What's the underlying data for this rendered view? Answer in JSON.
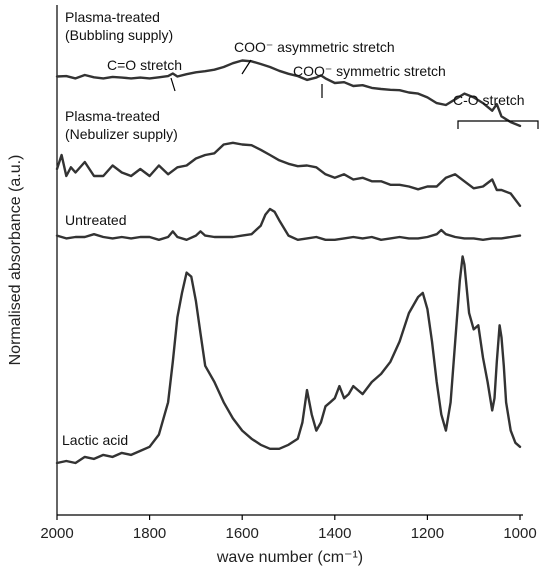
{
  "chart_data": {
    "type": "line",
    "xlabel": "wave number (cm⁻¹)",
    "ylabel": "Normalised absorbance (a.u.)",
    "xlim": [
      2000,
      1000
    ],
    "x_reversed": true,
    "x_ticks": [
      "2000",
      "1800",
      "1600",
      "1400",
      "1200",
      "1000"
    ],
    "y_ticks": false,
    "grid": false,
    "series": [
      {
        "name": "Plasma-treated (Bubbling supply)",
        "label_lines": [
          "Plasma-treated",
          "(Bubbling supply)"
        ],
        "x": [
          2000,
          1980,
          1960,
          1940,
          1920,
          1900,
          1880,
          1860,
          1840,
          1820,
          1800,
          1780,
          1760,
          1750,
          1740,
          1720,
          1700,
          1680,
          1660,
          1640,
          1620,
          1600,
          1580,
          1560,
          1540,
          1520,
          1500,
          1480,
          1460,
          1440,
          1430,
          1420,
          1400,
          1380,
          1360,
          1340,
          1320,
          1300,
          1280,
          1260,
          1240,
          1220,
          1200,
          1180,
          1160,
          1140,
          1120,
          1100,
          1080,
          1060,
          1050,
          1040,
          1020,
          1000
        ],
        "y": [
          0.75,
          0.76,
          0.7,
          0.79,
          0.73,
          0.7,
          0.74,
          0.72,
          0.7,
          0.72,
          0.7,
          0.73,
          0.76,
          0.83,
          0.75,
          0.81,
          0.86,
          0.89,
          0.93,
          1.0,
          1.1,
          1.17,
          1.15,
          1.08,
          1.0,
          0.9,
          0.82,
          0.76,
          0.66,
          0.72,
          0.78,
          0.7,
          0.58,
          0.6,
          0.5,
          0.52,
          0.45,
          0.42,
          0.4,
          0.39,
          0.33,
          0.3,
          0.2,
          0.05,
          0.0,
          0.15,
          0.3,
          0.2,
          0.05,
          -0.15,
          0.02,
          -0.3,
          -0.45,
          -0.55
        ]
      },
      {
        "name": "Plasma-treated (Nebulizer supply)",
        "label_lines": [
          "Plasma-treated",
          "(Nebulizer supply)"
        ],
        "x": [
          2000,
          1990,
          1980,
          1970,
          1960,
          1940,
          1920,
          1900,
          1880,
          1860,
          1840,
          1820,
          1800,
          1780,
          1760,
          1740,
          1720,
          1700,
          1680,
          1660,
          1640,
          1620,
          1600,
          1580,
          1560,
          1540,
          1520,
          1500,
          1480,
          1460,
          1440,
          1420,
          1400,
          1380,
          1360,
          1340,
          1320,
          1300,
          1280,
          1260,
          1240,
          1220,
          1200,
          1180,
          1160,
          1140,
          1120,
          1100,
          1080,
          1060,
          1050,
          1040,
          1020,
          1000
        ],
        "y": [
          0.2,
          0.6,
          0.0,
          0.25,
          0.1,
          0.4,
          0.0,
          0.0,
          0.3,
          0.1,
          0.0,
          0.2,
          0.0,
          0.3,
          0.05,
          0.25,
          0.3,
          0.5,
          0.6,
          0.65,
          0.9,
          0.95,
          0.9,
          0.88,
          0.75,
          0.6,
          0.45,
          0.35,
          0.28,
          0.3,
          0.25,
          0.05,
          -0.05,
          0.05,
          -0.1,
          -0.05,
          -0.15,
          -0.15,
          -0.25,
          -0.25,
          -0.3,
          -0.38,
          -0.3,
          -0.3,
          -0.05,
          0.05,
          -0.15,
          -0.35,
          -0.3,
          -0.1,
          -0.4,
          -0.4,
          -0.5,
          -0.85
        ]
      },
      {
        "name": "Untreated",
        "label_lines": [
          "Untreated"
        ],
        "x": [
          2000,
          1980,
          1960,
          1940,
          1920,
          1900,
          1880,
          1860,
          1840,
          1820,
          1800,
          1780,
          1760,
          1750,
          1740,
          1720,
          1700,
          1690,
          1680,
          1660,
          1640,
          1620,
          1600,
          1580,
          1560,
          1550,
          1540,
          1530,
          1520,
          1500,
          1480,
          1460,
          1440,
          1420,
          1400,
          1380,
          1360,
          1340,
          1320,
          1300,
          1280,
          1260,
          1240,
          1220,
          1200,
          1180,
          1170,
          1160,
          1140,
          1120,
          1100,
          1080,
          1060,
          1040,
          1020,
          1000
        ],
        "y": [
          0.05,
          -0.05,
          0.0,
          0.0,
          0.1,
          0.0,
          -0.05,
          0.0,
          -0.05,
          0.0,
          0.0,
          -0.1,
          0.0,
          0.2,
          0.0,
          -0.1,
          0.05,
          0.2,
          0.05,
          0.0,
          0.0,
          0.0,
          0.05,
          0.1,
          0.4,
          0.8,
          1.0,
          0.9,
          0.6,
          0.05,
          -0.1,
          -0.05,
          0.0,
          -0.1,
          -0.1,
          -0.05,
          0.0,
          -0.05,
          0.0,
          -0.1,
          -0.05,
          0.0,
          -0.05,
          -0.05,
          0.0,
          0.1,
          0.25,
          0.1,
          0.0,
          -0.05,
          -0.05,
          -0.1,
          -0.05,
          -0.05,
          0.0,
          0.05
        ]
      },
      {
        "name": "Lactic acid",
        "label_lines": [
          "Lactic acid"
        ],
        "x": [
          2000,
          1980,
          1960,
          1940,
          1920,
          1900,
          1880,
          1860,
          1840,
          1820,
          1800,
          1780,
          1760,
          1750,
          1740,
          1730,
          1720,
          1710,
          1700,
          1690,
          1680,
          1660,
          1640,
          1620,
          1600,
          1580,
          1560,
          1540,
          1520,
          1500,
          1480,
          1470,
          1460,
          1450,
          1440,
          1430,
          1420,
          1410,
          1400,
          1390,
          1380,
          1370,
          1360,
          1350,
          1340,
          1320,
          1300,
          1280,
          1260,
          1240,
          1220,
          1210,
          1200,
          1190,
          1180,
          1170,
          1160,
          1150,
          1140,
          1130,
          1124,
          1120,
          1110,
          1100,
          1090,
          1080,
          1070,
          1060,
          1055,
          1050,
          1044,
          1040,
          1035,
          1030,
          1020,
          1010,
          1000
        ],
        "y": [
          0.0,
          0.05,
          0.0,
          0.15,
          0.1,
          0.2,
          0.15,
          0.25,
          0.2,
          0.3,
          0.4,
          0.7,
          1.5,
          2.5,
          3.6,
          4.2,
          4.7,
          4.6,
          4.0,
          3.2,
          2.4,
          2.0,
          1.5,
          1.1,
          0.8,
          0.6,
          0.45,
          0.35,
          0.35,
          0.45,
          0.6,
          1.0,
          1.8,
          1.2,
          0.8,
          1.0,
          1.4,
          1.5,
          1.6,
          1.9,
          1.6,
          1.7,
          1.9,
          1.8,
          1.7,
          2.0,
          2.2,
          2.5,
          3.0,
          3.7,
          4.1,
          4.2,
          3.8,
          3.0,
          2.0,
          1.2,
          0.8,
          1.5,
          3.0,
          4.5,
          5.1,
          4.9,
          3.7,
          3.3,
          3.4,
          2.6,
          2.0,
          1.3,
          1.6,
          2.5,
          3.4,
          3.1,
          2.4,
          1.5,
          0.8,
          0.5,
          0.4
        ]
      }
    ],
    "annotations": [
      {
        "text": "C=O stretch",
        "x": 1750
      },
      {
        "text": "COO⁻ asymmetric stretch",
        "x": 1600
      },
      {
        "text": "COO⁻ symmetric stretch",
        "x": 1430
      },
      {
        "text": "C-O stretch",
        "x_range": [
          1130,
          975
        ]
      }
    ]
  }
}
